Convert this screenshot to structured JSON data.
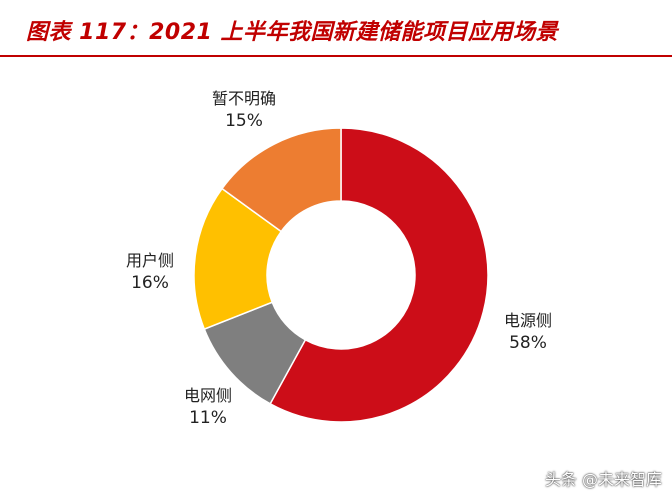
{
  "header": {
    "title": "图表 117：2021 上半年我国新建储能项目应用场景"
  },
  "chart_data": {
    "type": "pie",
    "variant": "donut",
    "start_angle_deg": 0,
    "direction": "clockwise",
    "slices": [
      {
        "label": "电源侧",
        "value": 58,
        "value_label": "58%",
        "color": "#cc0d18"
      },
      {
        "label": "电网侧",
        "value": 11,
        "value_label": "11%",
        "color": "#7f7f7f"
      },
      {
        "label": "用户侧",
        "value": 16,
        "value_label": "16%",
        "color": "#ffc000"
      },
      {
        "label": "暂不明确",
        "value": 15,
        "value_label": "15%",
        "color": "#ed7d31"
      }
    ]
  },
  "watermark": {
    "text": "头条 @未来智库"
  }
}
